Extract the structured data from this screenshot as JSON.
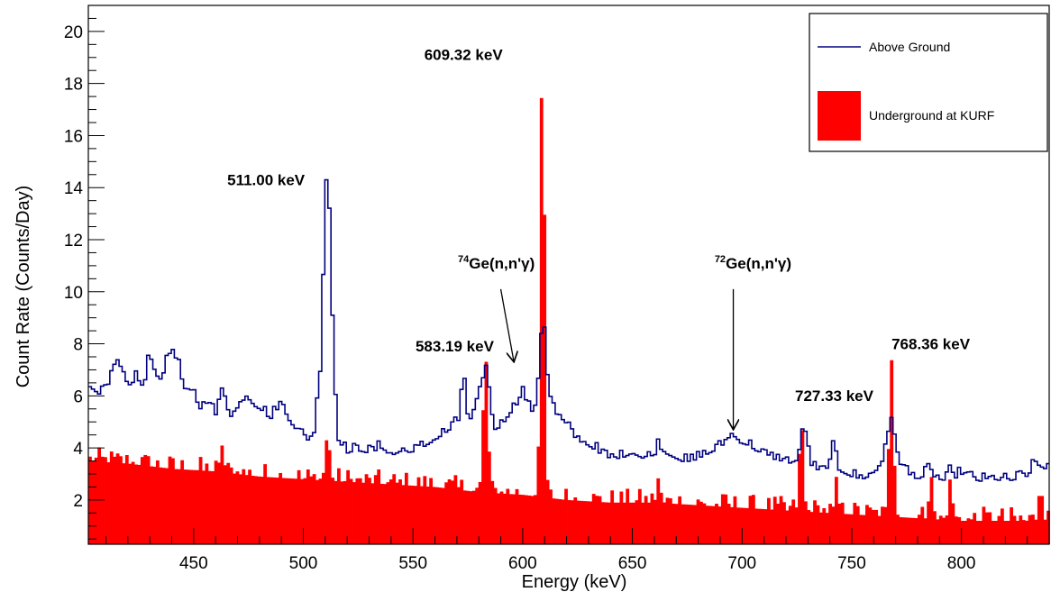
{
  "chart_data": {
    "type": "histogram",
    "xlabel": "Energy (keV)",
    "ylabel": "Count Rate (Counts/Day)",
    "xlim": [
      402,
      840
    ],
    "ylim": [
      0.3,
      21.0
    ],
    "x_ticks": [
      450,
      500,
      550,
      600,
      650,
      700,
      750,
      800
    ],
    "y_ticks": [
      2,
      4,
      6,
      8,
      10,
      12,
      14,
      16,
      18,
      20
    ],
    "grid": false,
    "legend_position": "top-right",
    "bin_width": 1.4,
    "series": [
      {
        "name": "Above Ground",
        "style": "step-line",
        "color": "#00007f",
        "profile": [
          [
            402,
            6.4
          ],
          [
            405,
            6.2
          ],
          [
            408,
            6.0
          ],
          [
            412,
            6.5
          ],
          [
            415,
            7.3
          ],
          [
            418,
            6.6
          ],
          [
            421,
            6.3
          ],
          [
            424,
            6.8
          ],
          [
            427,
            6.2
          ],
          [
            430,
            7.6
          ],
          [
            434,
            6.5
          ],
          [
            437,
            7.0
          ],
          [
            440,
            7.9
          ],
          [
            443,
            7.2
          ],
          [
            447,
            5.9
          ],
          [
            450,
            6.1
          ],
          [
            453,
            5.5
          ],
          [
            457,
            5.8
          ],
          [
            460,
            5.2
          ],
          [
            463,
            5.8
          ],
          [
            467,
            5.2
          ],
          [
            470,
            5.5
          ],
          [
            474,
            6.0
          ],
          [
            478,
            5.6
          ],
          [
            482,
            5.4
          ],
          [
            485,
            5.1
          ],
          [
            490,
            5.7
          ],
          [
            494,
            5.0
          ],
          [
            498,
            4.6
          ],
          [
            502,
            4.3
          ],
          [
            505,
            4.6
          ],
          [
            508,
            7.2
          ],
          [
            510,
            13.5
          ],
          [
            511,
            15.1
          ],
          [
            512,
            13.0
          ],
          [
            514,
            7.0
          ],
          [
            516,
            4.3
          ],
          [
            520,
            3.8
          ],
          [
            525,
            3.9
          ],
          [
            530,
            3.8
          ],
          [
            536,
            4.0
          ],
          [
            540,
            3.7
          ],
          [
            545,
            3.9
          ],
          [
            550,
            3.8
          ],
          [
            556,
            4.1
          ],
          [
            560,
            4.3
          ],
          [
            565,
            4.6
          ],
          [
            570,
            4.9
          ],
          [
            575,
            5.0
          ],
          [
            578,
            5.2
          ],
          [
            581,
            6.2
          ],
          [
            583,
            7.3
          ],
          [
            585,
            6.0
          ],
          [
            587,
            4.7
          ],
          [
            590,
            4.8
          ],
          [
            594,
            5.3
          ],
          [
            597,
            5.6
          ],
          [
            600,
            6.2
          ],
          [
            603,
            5.5
          ],
          [
            606,
            5.3
          ],
          [
            608,
            7.8
          ],
          [
            609,
            9.0
          ],
          [
            610,
            8.6
          ],
          [
            611,
            7.0
          ],
          [
            613,
            5.8
          ],
          [
            616,
            5.2
          ],
          [
            620,
            4.8
          ],
          [
            625,
            4.3
          ],
          [
            630,
            4.1
          ],
          [
            635,
            3.8
          ],
          [
            640,
            3.6
          ],
          [
            645,
            3.6
          ],
          [
            650,
            3.8
          ],
          [
            655,
            3.6
          ],
          [
            660,
            3.7
          ],
          [
            665,
            3.8
          ],
          [
            670,
            3.6
          ],
          [
            675,
            3.4
          ],
          [
            680,
            3.6
          ],
          [
            685,
            3.8
          ],
          [
            690,
            4.0
          ],
          [
            694,
            4.4
          ],
          [
            696,
            4.5
          ],
          [
            699,
            4.2
          ],
          [
            703,
            4.1
          ],
          [
            708,
            3.8
          ],
          [
            713,
            3.6
          ],
          [
            718,
            3.5
          ],
          [
            723,
            3.4
          ],
          [
            726,
            3.6
          ],
          [
            728,
            5.0
          ],
          [
            729,
            4.6
          ],
          [
            731,
            3.4
          ],
          [
            735,
            3.0
          ],
          [
            740,
            3.3
          ],
          [
            745,
            3.1
          ],
          [
            750,
            2.9
          ],
          [
            755,
            2.8
          ],
          [
            760,
            3.0
          ],
          [
            764,
            3.5
          ],
          [
            766,
            4.5
          ],
          [
            768,
            4.9
          ],
          [
            770,
            4.2
          ],
          [
            772,
            3.4
          ],
          [
            776,
            3.0
          ],
          [
            780,
            2.8
          ],
          [
            785,
            3.0
          ],
          [
            790,
            2.8
          ],
          [
            795,
            2.7
          ],
          [
            800,
            3.0
          ],
          [
            805,
            2.8
          ],
          [
            810,
            2.7
          ],
          [
            815,
            2.8
          ],
          [
            820,
            2.7
          ],
          [
            825,
            2.8
          ],
          [
            830,
            2.9
          ],
          [
            834,
            3.4
          ],
          [
            838,
            3.2
          ],
          [
            840,
            3.3
          ]
        ],
        "jitter": 0.35,
        "peaks": [
          [
            463,
            6.3,
            1.2
          ],
          [
            573,
            6.9,
            1.0
          ],
          [
            662,
            4.4,
            0.7
          ],
          [
            742,
            4.5,
            0.8
          ],
          [
            785,
            3.4,
            0.7
          ],
          [
            795,
            3.4,
            0.7
          ]
        ]
      },
      {
        "name": "Underground at KURF",
        "style": "filled-histogram",
        "color": "#ff0000",
        "profile": [
          [
            402,
            3.5
          ],
          [
            420,
            3.4
          ],
          [
            440,
            3.2
          ],
          [
            460,
            3.1
          ],
          [
            480,
            2.9
          ],
          [
            500,
            2.8
          ],
          [
            520,
            2.7
          ],
          [
            540,
            2.6
          ],
          [
            560,
            2.5
          ],
          [
            580,
            2.3
          ],
          [
            600,
            2.2
          ],
          [
            620,
            2.0
          ],
          [
            640,
            1.9
          ],
          [
            660,
            1.9
          ],
          [
            680,
            1.8
          ],
          [
            700,
            1.7
          ],
          [
            720,
            1.6
          ],
          [
            740,
            1.5
          ],
          [
            760,
            1.4
          ],
          [
            780,
            1.3
          ],
          [
            800,
            1.2
          ],
          [
            820,
            1.2
          ],
          [
            840,
            1.2
          ]
        ],
        "jitter": 0.55,
        "peaks": [
          [
            463,
            4.1,
            0.8
          ],
          [
            511,
            4.5,
            1.0
          ],
          [
            583,
            7.5,
            1.1
          ],
          [
            609,
            20.0,
            0.9
          ],
          [
            662,
            2.9,
            0.8
          ],
          [
            727,
            5.2,
            0.9
          ],
          [
            743,
            2.9,
            0.8
          ],
          [
            768,
            7.4,
            1.0
          ],
          [
            786,
            3.0,
            0.8
          ],
          [
            795,
            2.9,
            0.8
          ],
          [
            836,
            2.6,
            0.8
          ]
        ]
      }
    ],
    "annotations": [
      {
        "text": "511.00 keV",
        "x": 483,
        "y": 14.1
      },
      {
        "text": "609.32 keV",
        "x": 573,
        "y": 18.9
      },
      {
        "text": "583.19 keV",
        "x": 569,
        "y": 7.7
      },
      {
        "text": "768.36 keV",
        "x": 786,
        "y": 7.8
      },
      {
        "text": "727.33 keV",
        "x": 742,
        "y": 5.8
      }
    ],
    "arrow_labels": [
      {
        "mass": "74",
        "text": "Ge(n,n'γ)",
        "label_x": 588,
        "label_y": 10.9,
        "from": [
          590,
          10.1
        ],
        "to": [
          596,
          7.3
        ]
      },
      {
        "mass": "72",
        "text": "Ge(n,n'γ)",
        "label_x": 705,
        "label_y": 10.9,
        "from": [
          696,
          10.1
        ],
        "to": [
          696,
          4.7
        ]
      }
    ]
  },
  "legend": {
    "above_ground_label": "Above Ground",
    "underground_label": "Underground at KURF",
    "above_ground_color": "#00007f",
    "underground_color": "#ff0000"
  }
}
